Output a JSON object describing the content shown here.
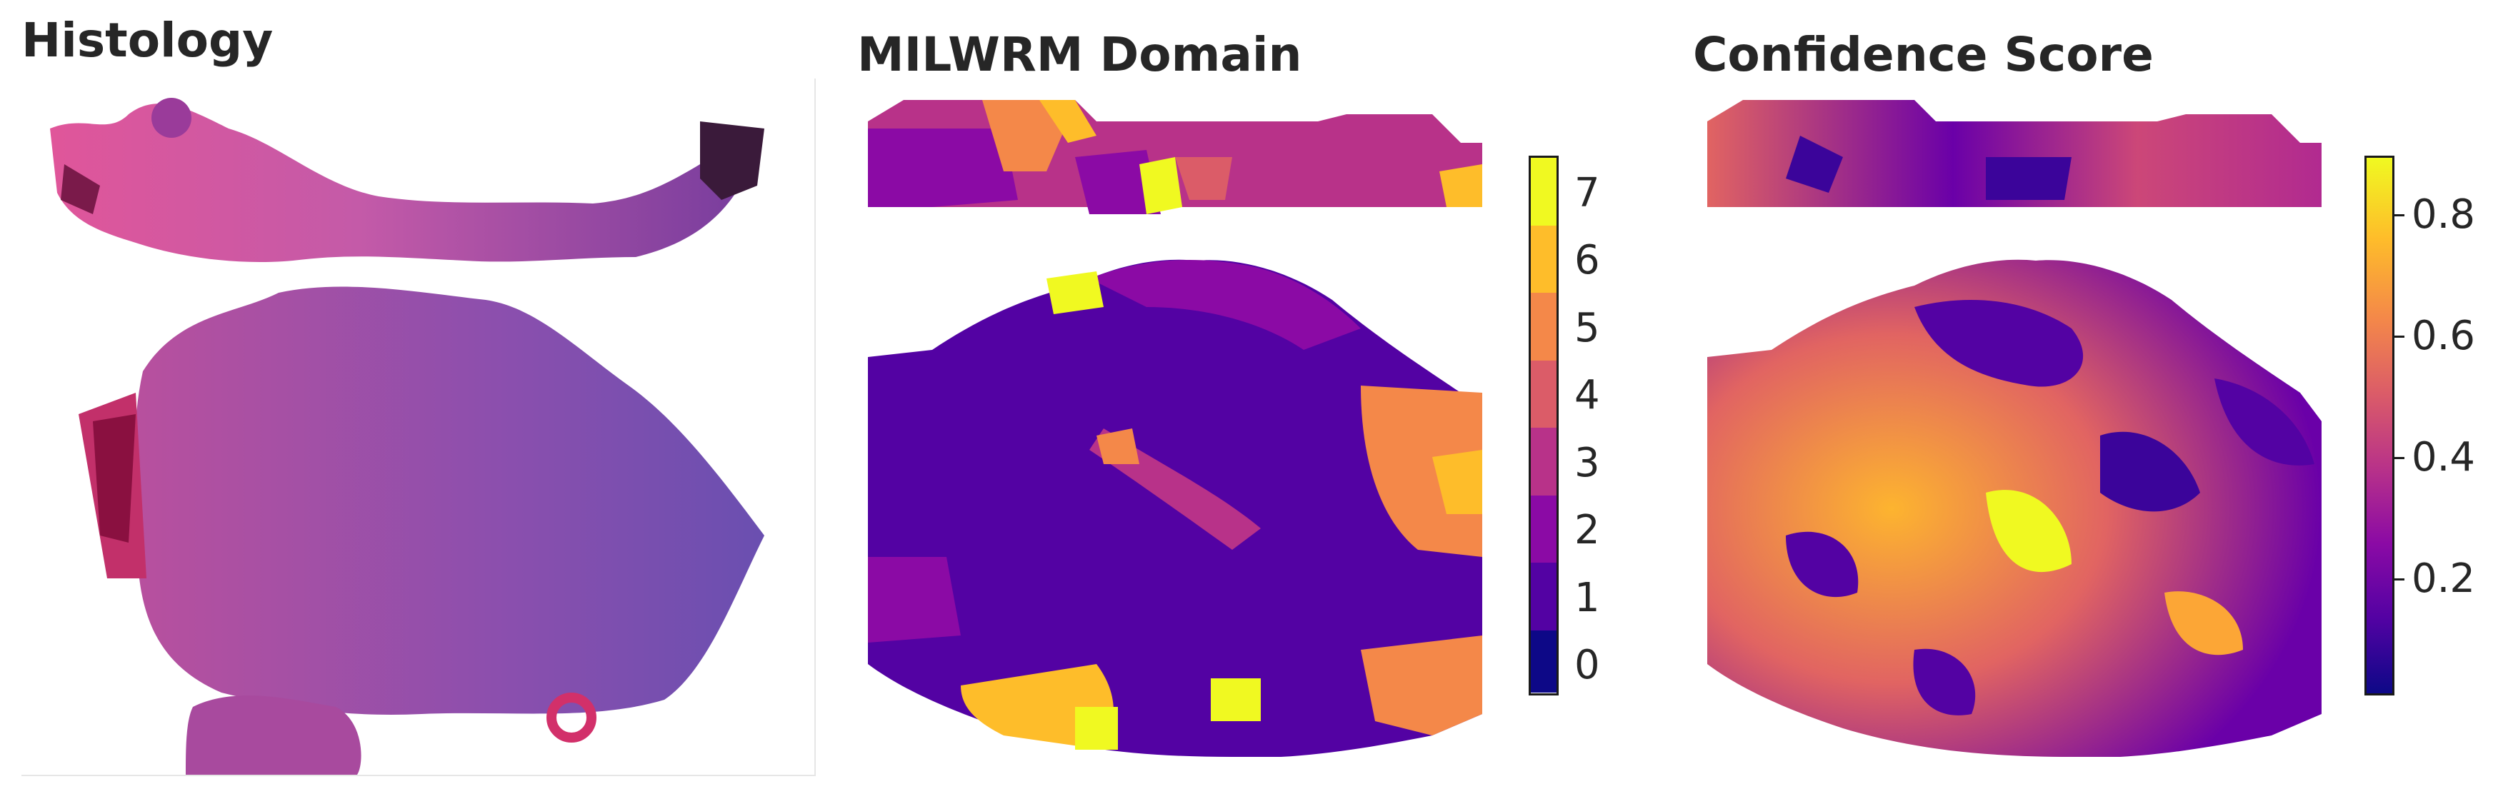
{
  "panels": {
    "histology": {
      "title": "Histology"
    },
    "domain": {
      "title": "MILWRM Domain"
    },
    "confidence": {
      "title": "Confidence Score"
    }
  },
  "domain_colorbar": {
    "ticks": [
      "0",
      "1",
      "2",
      "3",
      "4",
      "5",
      "6",
      "7"
    ],
    "colors": [
      "#0d0887",
      "#5302a3",
      "#8b0aa5",
      "#b83289",
      "#db5c68",
      "#f48849",
      "#febd2a",
      "#f0f921"
    ]
  },
  "confidence_colorbar": {
    "ticks": [
      "0.2",
      "0.4",
      "0.6",
      "0.8"
    ],
    "colormap": "plasma"
  },
  "colors": {
    "plasma_low": "#0d0887",
    "plasma_mid": "#cc4778",
    "plasma_high": "#f0f921",
    "tissue_pink": "#d94f9c",
    "tissue_purple": "#8c4aa8"
  }
}
